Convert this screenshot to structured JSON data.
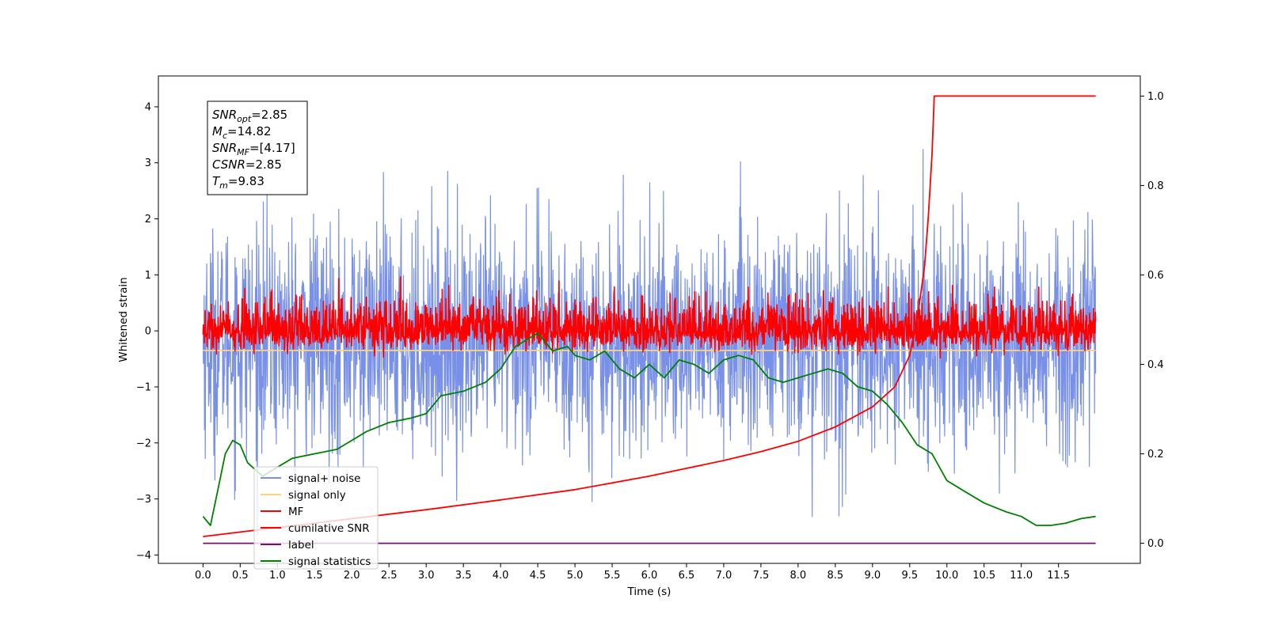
{
  "chart_data": {
    "type": "line",
    "xlabel": "Time (s)",
    "ylabel": "Whitened strain",
    "xlim": [
      -0.6,
      12.6
    ],
    "ylim": [
      -4.15,
      4.55
    ],
    "y2lim": [
      -0.045,
      1.045
    ],
    "x_ticks": [
      "0.0",
      "0.5",
      "1.0",
      "1.5",
      "2.0",
      "2.5",
      "3.0",
      "3.5",
      "4.0",
      "4.5",
      "5.0",
      "5.5",
      "6.0",
      "6.5",
      "7.0",
      "7.5",
      "8.0",
      "8.5",
      "9.0",
      "9.5",
      "10.0",
      "10.5",
      "11.0",
      "11.5"
    ],
    "y_ticks": [
      "−4",
      "−3",
      "−2",
      "−1",
      "0",
      "1",
      "2",
      "3",
      "4"
    ],
    "y2_ticks": [
      "0.0",
      "0.2",
      "0.4",
      "0.6",
      "0.8",
      "1.0"
    ],
    "grid": false,
    "annotation": [
      {
        "name": "SNR",
        "sub": "opt",
        "value": "=2.85"
      },
      {
        "name": "M",
        "sub": "c",
        "value": "=14.82"
      },
      {
        "name": "SNR",
        "sub": "MF",
        "value": "=[4.17]"
      },
      {
        "name": "CSNR",
        "sub": "",
        "value": "=2.85"
      },
      {
        "name": "T",
        "sub": "m",
        "value": "=9.83"
      }
    ],
    "legend_position": "lower-left",
    "series": [
      {
        "name": "signal+ noise",
        "color": "#7890e8",
        "axis": "left",
        "kind": "noise",
        "center": -0.15,
        "std": 1.0,
        "x_range": [
          0,
          12.0
        ]
      },
      {
        "name": "signal only",
        "color": "#ffd27f",
        "axis": "left",
        "kind": "flat",
        "value": -0.35,
        "x_range": [
          0,
          12.0
        ]
      },
      {
        "name": "MF",
        "color": "#ff0000",
        "axis": "left",
        "kind": "noise",
        "center": 0.0,
        "std": 0.18,
        "x_range": [
          0,
          12.0
        ]
      },
      {
        "name": "cumilative SNR",
        "color": "#ff0000",
        "axis": "right",
        "x": [
          0.0,
          0.5,
          1.0,
          2.0,
          3.0,
          4.0,
          5.0,
          6.0,
          7.0,
          7.5,
          8.0,
          8.5,
          9.0,
          9.3,
          9.5,
          9.6,
          9.7,
          9.75,
          9.8,
          9.83,
          10.5,
          11.0,
          11.5,
          12.0
        ],
        "values": [
          0.015,
          0.025,
          0.035,
          0.055,
          0.075,
          0.097,
          0.12,
          0.15,
          0.185,
          0.205,
          0.228,
          0.26,
          0.305,
          0.35,
          0.42,
          0.5,
          0.62,
          0.73,
          0.87,
          1.0,
          1.0,
          1.0,
          1.0,
          1.0
        ]
      },
      {
        "name": "label",
        "color": "#7b0a7b",
        "axis": "right",
        "x": [
          0.0,
          12.0
        ],
        "values": [
          0.0,
          0.0
        ]
      },
      {
        "name": "signal statistics",
        "color": "#008000",
        "axis": "right",
        "x": [
          0.0,
          0.1,
          0.2,
          0.3,
          0.4,
          0.5,
          0.6,
          0.8,
          1.0,
          1.2,
          1.5,
          1.8,
          2.0,
          2.2,
          2.5,
          2.8,
          3.0,
          3.2,
          3.5,
          3.8,
          4.0,
          4.2,
          4.5,
          4.7,
          4.9,
          5.0,
          5.2,
          5.4,
          5.6,
          5.8,
          6.0,
          6.2,
          6.4,
          6.6,
          6.8,
          7.0,
          7.2,
          7.4,
          7.6,
          7.8,
          8.0,
          8.2,
          8.4,
          8.6,
          8.8,
          9.0,
          9.2,
          9.4,
          9.6,
          9.8,
          10.0,
          10.2,
          10.5,
          10.8,
          11.0,
          11.2,
          11.4,
          11.6,
          11.8,
          12.0
        ],
        "values": [
          0.06,
          0.04,
          0.12,
          0.2,
          0.23,
          0.22,
          0.18,
          0.15,
          0.17,
          0.19,
          0.2,
          0.21,
          0.23,
          0.25,
          0.27,
          0.28,
          0.29,
          0.33,
          0.34,
          0.36,
          0.39,
          0.44,
          0.47,
          0.43,
          0.44,
          0.42,
          0.41,
          0.43,
          0.39,
          0.37,
          0.4,
          0.37,
          0.41,
          0.4,
          0.38,
          0.41,
          0.42,
          0.41,
          0.37,
          0.36,
          0.37,
          0.38,
          0.39,
          0.38,
          0.35,
          0.34,
          0.31,
          0.27,
          0.22,
          0.2,
          0.14,
          0.12,
          0.09,
          0.07,
          0.06,
          0.04,
          0.04,
          0.045,
          0.055,
          0.06
        ]
      }
    ]
  }
}
